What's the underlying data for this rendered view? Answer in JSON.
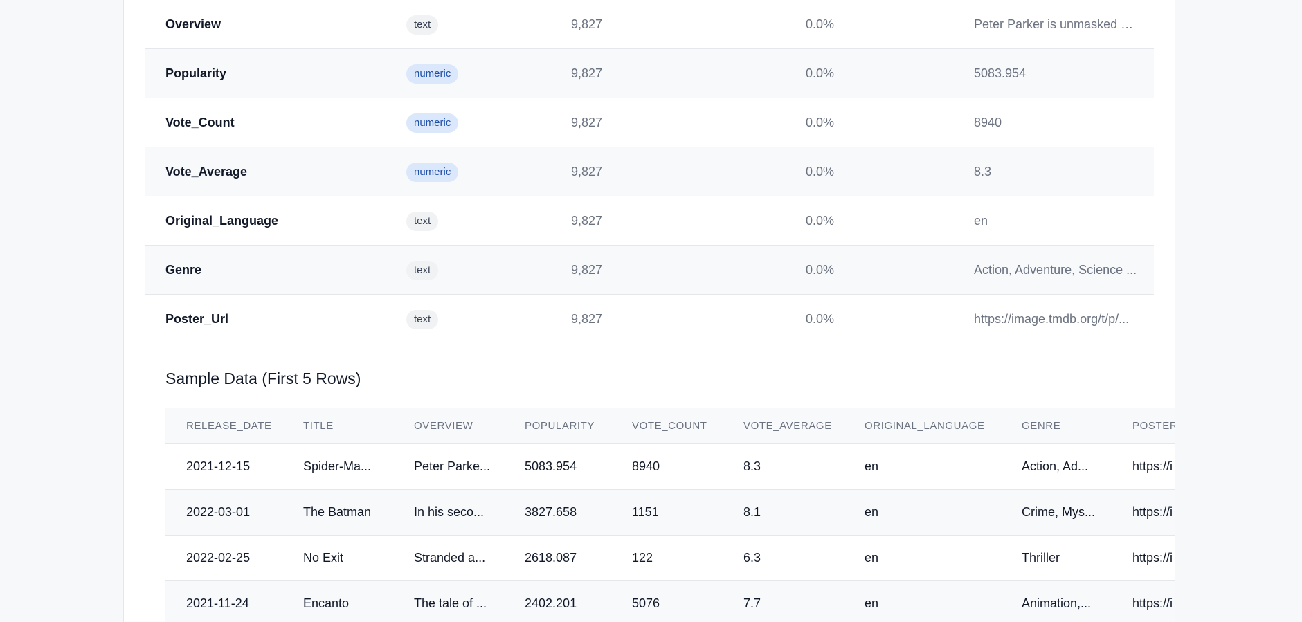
{
  "columns_summary": [
    {
      "name": "Overview",
      "type": "text",
      "count": "9,827",
      "missing": "0.0%",
      "sample": "Peter Parker is unmasked an..."
    },
    {
      "name": "Popularity",
      "type": "numeric",
      "count": "9,827",
      "missing": "0.0%",
      "sample": "5083.954"
    },
    {
      "name": "Vote_Count",
      "type": "numeric",
      "count": "9,827",
      "missing": "0.0%",
      "sample": "8940"
    },
    {
      "name": "Vote_Average",
      "type": "numeric",
      "count": "9,827",
      "missing": "0.0%",
      "sample": "8.3"
    },
    {
      "name": "Original_Language",
      "type": "text",
      "count": "9,827",
      "missing": "0.0%",
      "sample": "en"
    },
    {
      "name": "Genre",
      "type": "text",
      "count": "9,827",
      "missing": "0.0%",
      "sample": "Action, Adventure, Science ..."
    },
    {
      "name": "Poster_Url",
      "type": "text",
      "count": "9,827",
      "missing": "0.0%",
      "sample": "https://image.tmdb.org/t/p/..."
    }
  ],
  "sample_section": {
    "title": "Sample Data (First 5 Rows)",
    "headers": [
      "RELEASE_DATE",
      "TITLE",
      "OVERVIEW",
      "POPULARITY",
      "VOTE_COUNT",
      "VOTE_AVERAGE",
      "ORIGINAL_LANGUAGE",
      "GENRE",
      "POSTER_"
    ],
    "rows": [
      [
        "2021-12-15",
        "Spider-Ma...",
        "Peter Parke...",
        "5083.954",
        "8940",
        "8.3",
        "en",
        "Action, Ad...",
        "https://i"
      ],
      [
        "2022-03-01",
        "The Batman",
        "In his seco...",
        "3827.658",
        "1151",
        "8.1",
        "en",
        "Crime, Mys...",
        "https://i"
      ],
      [
        "2022-02-25",
        "No Exit",
        "Stranded a...",
        "2618.087",
        "122",
        "6.3",
        "en",
        "Thriller",
        "https://i"
      ],
      [
        "2021-11-24",
        "Encanto",
        "The tale of ...",
        "2402.201",
        "5076",
        "7.7",
        "en",
        "Animation,...",
        "https://i"
      ]
    ]
  }
}
